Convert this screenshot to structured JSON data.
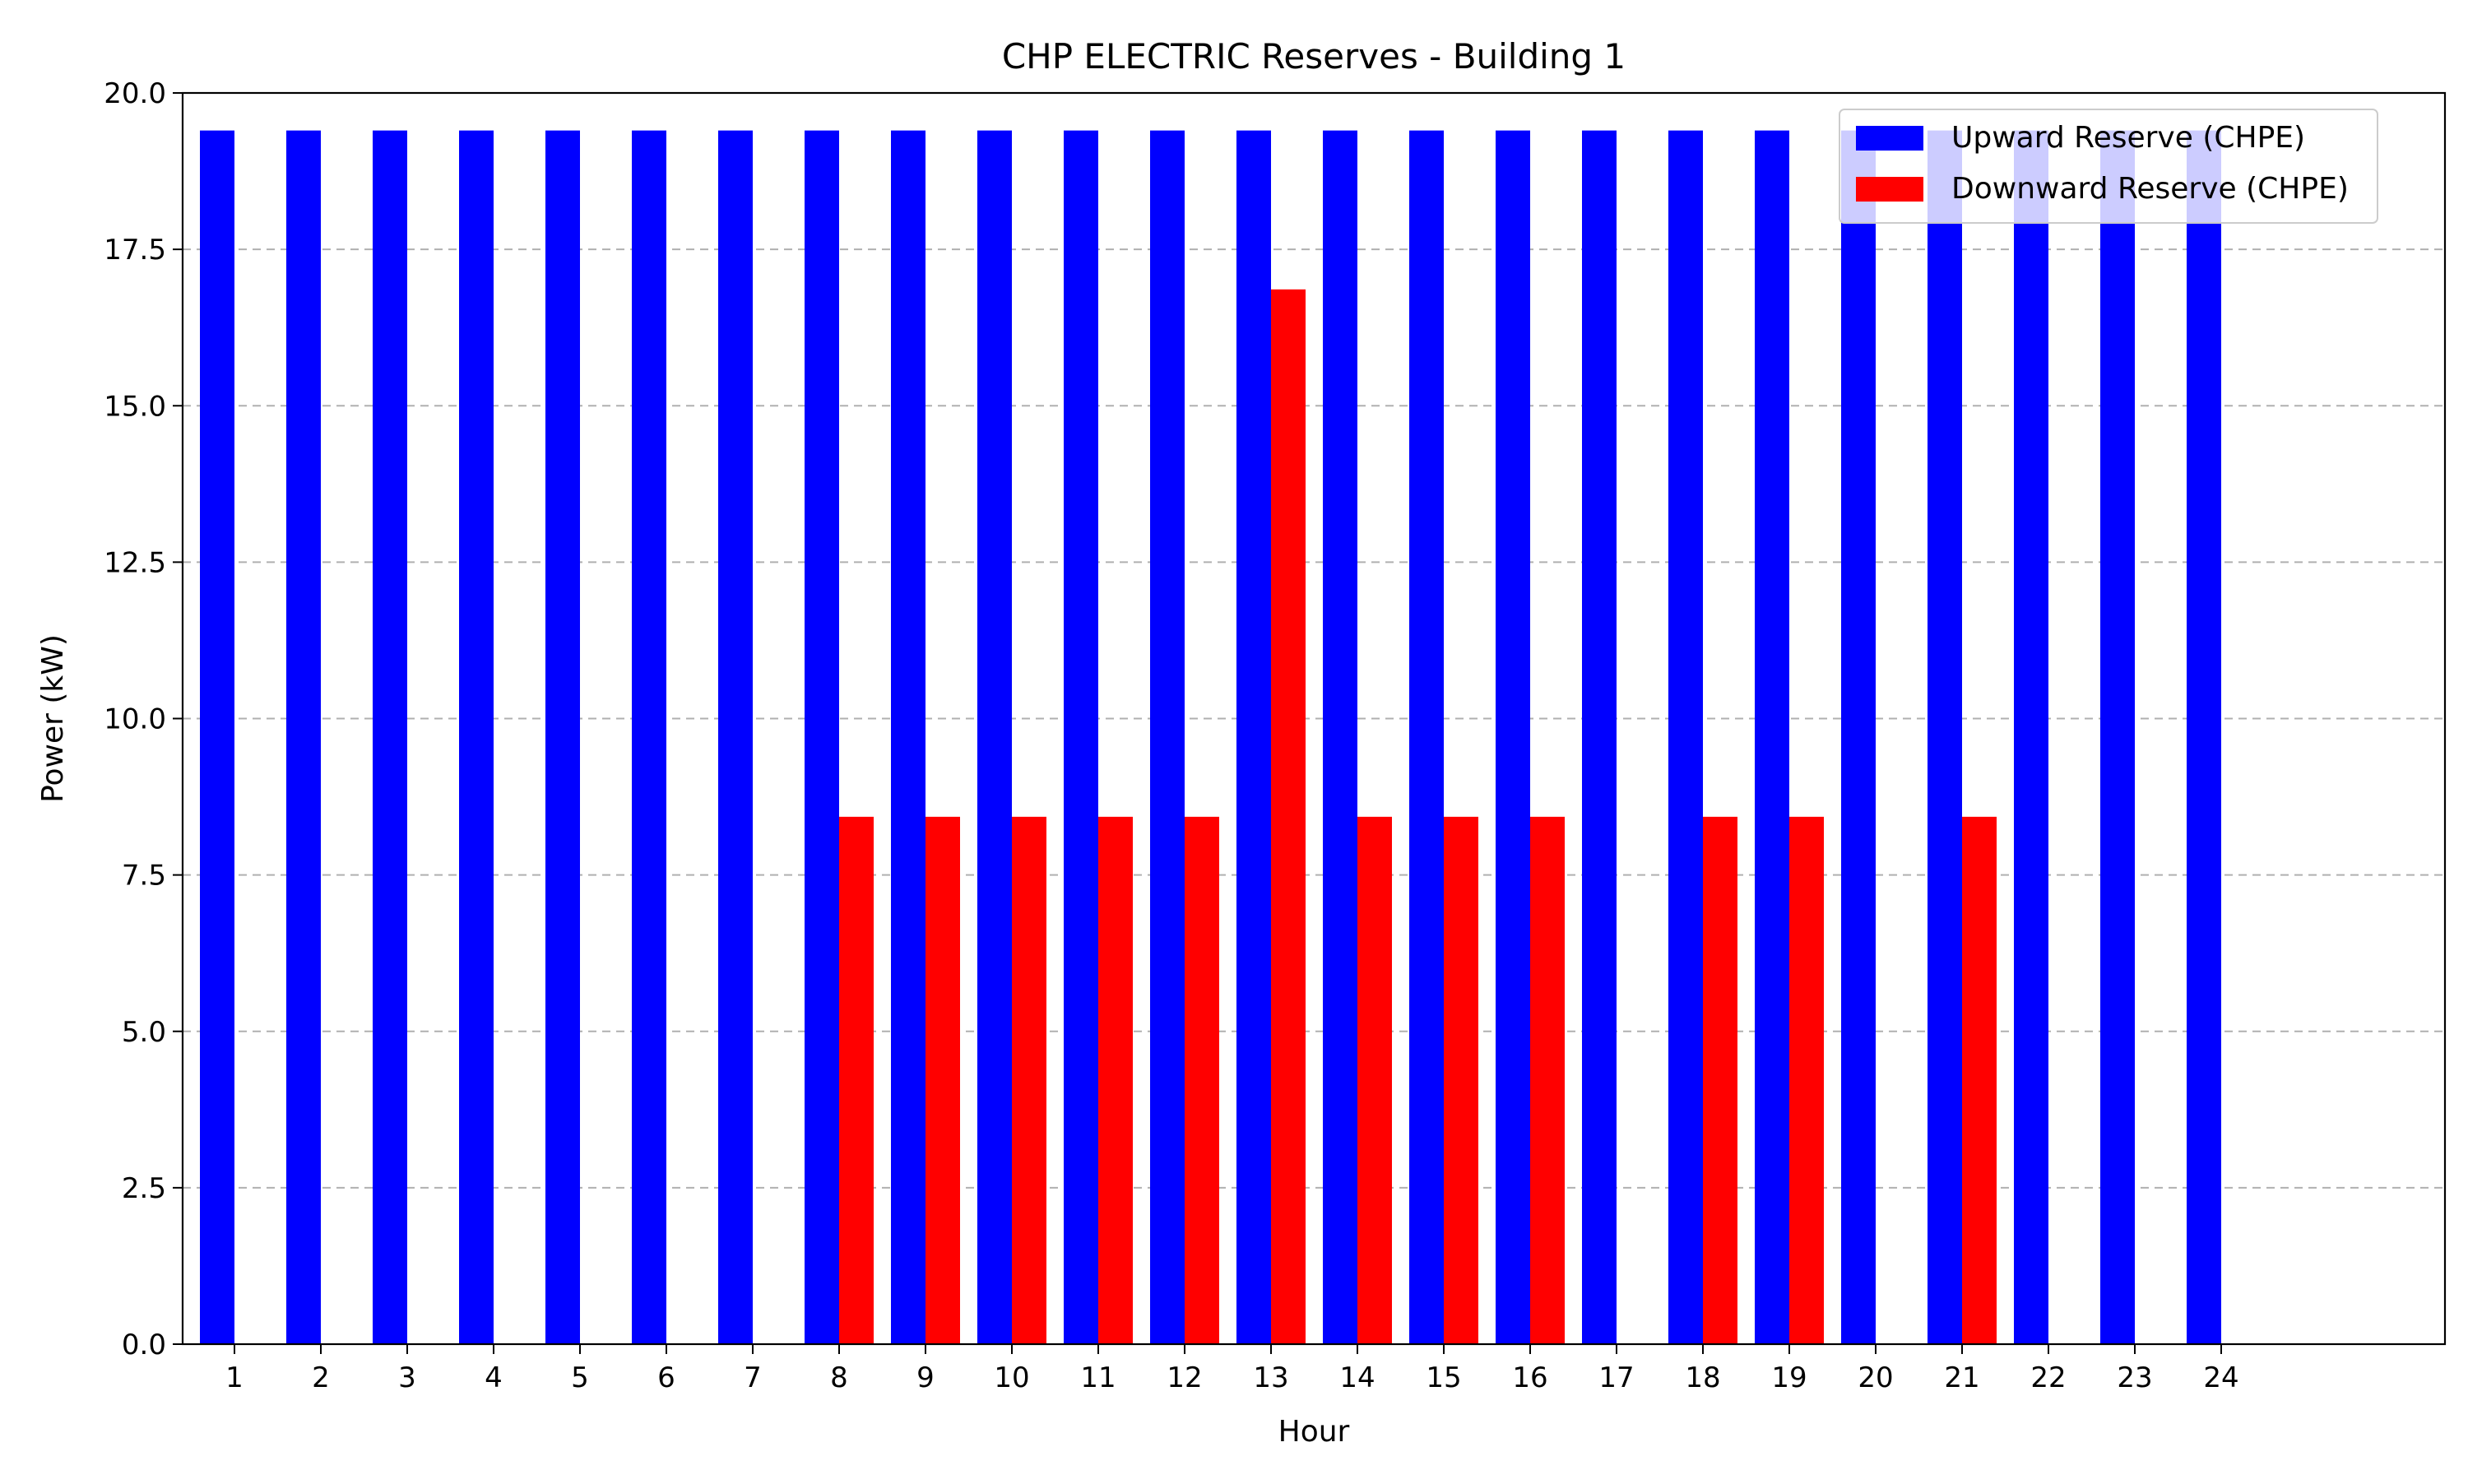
{
  "chart_data": {
    "type": "bar",
    "title": "CHP ELECTRIC Reserves - Building 1",
    "xlabel": "Hour",
    "ylabel": "Power (kW)",
    "categories": [
      "1",
      "2",
      "3",
      "4",
      "5",
      "6",
      "7",
      "8",
      "9",
      "10",
      "11",
      "12",
      "13",
      "14",
      "15",
      "16",
      "17",
      "18",
      "19",
      "20",
      "21",
      "22",
      "23",
      "24"
    ],
    "ylim": [
      0,
      20.0
    ],
    "yticks": [
      "0.0",
      "2.5",
      "5.0",
      "7.5",
      "10.0",
      "12.5",
      "15.0",
      "17.5",
      "20.0"
    ],
    "grid": "horizontal dashed",
    "legend_position": "top-right",
    "series": [
      {
        "name": "Upward Reserve (CHPE)",
        "color": "#0000ff",
        "values": [
          19.4,
          19.4,
          19.4,
          19.4,
          19.4,
          19.4,
          19.4,
          19.4,
          19.4,
          19.4,
          19.4,
          19.4,
          19.4,
          19.4,
          19.4,
          19.4,
          19.4,
          19.4,
          19.4,
          19.4,
          19.4,
          19.4,
          19.4,
          19.4
        ]
      },
      {
        "name": "Downward Reserve (CHPE)",
        "color": "#ff0000",
        "values": [
          0,
          0,
          0,
          0,
          0,
          0,
          0,
          8.43,
          8.43,
          8.43,
          8.43,
          8.43,
          16.86,
          8.43,
          8.43,
          8.43,
          0,
          8.43,
          8.43,
          0,
          8.43,
          0,
          0,
          0
        ]
      }
    ]
  }
}
